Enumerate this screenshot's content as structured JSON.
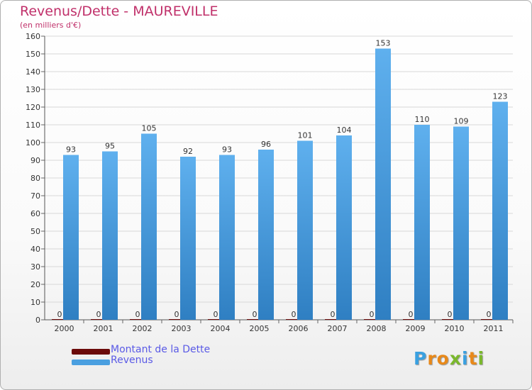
{
  "colors": {
    "title": "#c0306a",
    "dette": "#6b0a0a",
    "revenus": "#4a9fe0",
    "axis_text": "#333333",
    "grid": "#d8d8d8",
    "legend_text": "#5a5ae6"
  },
  "legend": {
    "dette_label": "Montant de la Dette",
    "revenus_label": "Revenus"
  },
  "logo": {
    "text": "Proxiti"
  },
  "chart_data": {
    "type": "bar",
    "title": "Revenus/Dette - MAUREVILLE",
    "subtitle": "(en milliers d'€)",
    "categories": [
      "2000",
      "2001",
      "2002",
      "2003",
      "2004",
      "2005",
      "2006",
      "2007",
      "2008",
      "2009",
      "2010",
      "2011"
    ],
    "series": [
      {
        "name": "Montant de la Dette",
        "values": [
          0,
          0,
          0,
          0,
          0,
          0,
          0,
          0,
          0,
          0,
          0,
          0
        ]
      },
      {
        "name": "Revenus",
        "values": [
          93,
          95,
          105,
          92,
          93,
          96,
          101,
          104,
          153,
          110,
          109,
          123
        ]
      }
    ],
    "ylim": [
      0,
      160
    ],
    "ytick_step": 10,
    "grid": true,
    "legend_position": "bottom-left"
  }
}
